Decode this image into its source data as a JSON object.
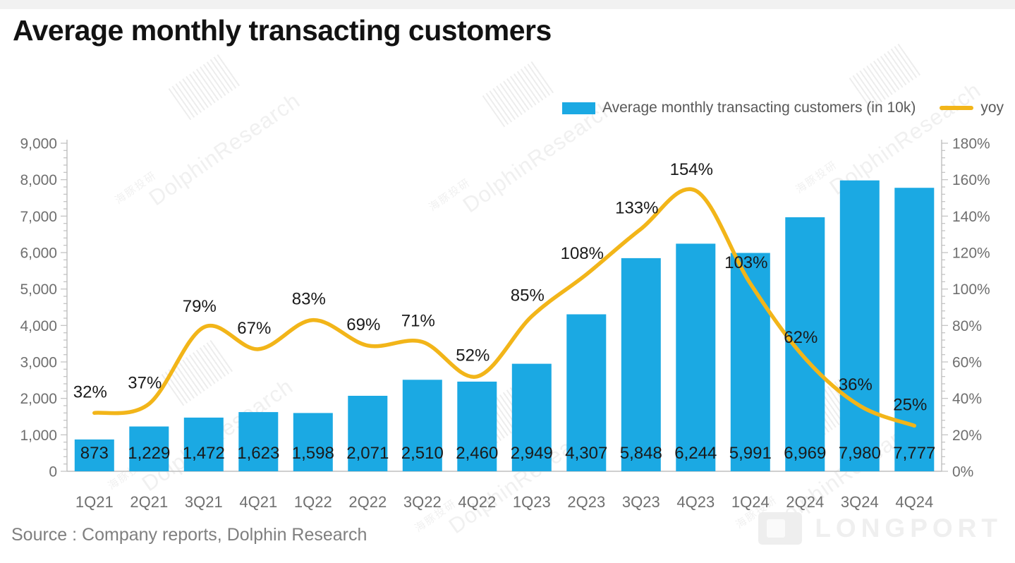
{
  "title": "Average monthly transacting customers",
  "source": "Source : Company reports, Dolphin Research",
  "legend": [
    {
      "label": "Average monthly transacting customers (in 10k)",
      "type": "bar"
    },
    {
      "label": "yoy",
      "type": "line"
    }
  ],
  "watermark": {
    "brand": "DolphinResearch",
    "cn": "海豚投研",
    "logo_text": "LONGPORT"
  },
  "colors": {
    "bar": "#1BA9E3",
    "line": "#F2B519",
    "axis": "#BFBFBF",
    "axis_text": "#6F6F6F",
    "data_label": "#1A1A1A"
  },
  "chart_data": {
    "type": "bar",
    "title": "Average monthly transacting customers",
    "categories": [
      "1Q21",
      "2Q21",
      "3Q21",
      "4Q21",
      "1Q22",
      "2Q22",
      "3Q22",
      "4Q22",
      "1Q23",
      "2Q23",
      "3Q23",
      "4Q23",
      "1Q24",
      "2Q24",
      "3Q24",
      "4Q24"
    ],
    "series": [
      {
        "name": "Average monthly transacting customers (in 10k)",
        "type": "bar",
        "axis": "left",
        "values": [
          873,
          1229,
          1472,
          1623,
          1598,
          2071,
          2510,
          2460,
          2949,
          4307,
          5848,
          6244,
          5991,
          6969,
          7980,
          7777
        ],
        "labels": [
          "873",
          "1,229",
          "1,472",
          "1,623",
          "1,598",
          "2,071",
          "2,510",
          "2,460",
          "2,949",
          "4,307",
          "5,848",
          "6,244",
          "5,991",
          "6,969",
          "7,980",
          "7,777"
        ]
      },
      {
        "name": "yoy",
        "type": "line",
        "axis": "right",
        "values": [
          32,
          37,
          79,
          67,
          83,
          69,
          71,
          52,
          85,
          108,
          133,
          154,
          103,
          62,
          36,
          25
        ],
        "labels": [
          "32%",
          "37%",
          "79%",
          "67%",
          "83%",
          "69%",
          "71%",
          "52%",
          "85%",
          "108%",
          "133%",
          "154%",
          "103%",
          "62%",
          "36%",
          "25%"
        ]
      }
    ],
    "left_axis": {
      "min": 0,
      "max": 9000,
      "step": 1000,
      "minor_step": 200,
      "ticks": [
        "0",
        "1,000",
        "2,000",
        "3,000",
        "4,000",
        "5,000",
        "6,000",
        "7,000",
        "8,000",
        "9,000"
      ]
    },
    "right_axis": {
      "min": 0,
      "max": 180,
      "step": 20,
      "minor_step": 4,
      "ticks": [
        "0%",
        "20%",
        "40%",
        "60%",
        "80%",
        "100%",
        "120%",
        "140%",
        "160%",
        "180%"
      ]
    },
    "grid": false,
    "legend_position": "top-right"
  }
}
